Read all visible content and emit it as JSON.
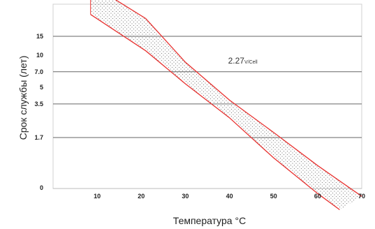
{
  "chart_data": {
    "type": "area",
    "xlabel": "Температура °C",
    "ylabel": "Срок службы (лет)",
    "xlim": [
      0,
      70
    ],
    "x_ticks": [
      10,
      20,
      30,
      40,
      50,
      60,
      70
    ],
    "y_ticks": [
      {
        "label": "15",
        "value": 15,
        "gridline": true
      },
      {
        "label": "10",
        "value": 10,
        "gridline": false
      },
      {
        "label": "7.0",
        "value": 7.0,
        "gridline": true
      },
      {
        "label": "5",
        "value": 5,
        "gridline": false
      },
      {
        "label": "3.5",
        "value": 3.5,
        "gridline": true
      },
      {
        "label": "1.7",
        "value": 1.7,
        "gridline": true
      },
      {
        "label": "0",
        "value": 0,
        "gridline": false
      }
    ],
    "y_scale": "log",
    "grid": "horizontal",
    "series": [
      {
        "role": "upper",
        "color": "#e8312f",
        "points": [
          [
            8.5,
            46
          ],
          [
            21,
            22
          ],
          [
            30,
            8.6
          ],
          [
            40,
            3.8
          ],
          [
            50,
            1.9
          ],
          [
            60,
            0.93
          ],
          [
            70,
            0.48
          ]
        ]
      },
      {
        "role": "lower",
        "color": "#e8312f",
        "points": [
          [
            8.5,
            24
          ],
          [
            21,
            11
          ],
          [
            30,
            5.4
          ],
          [
            40,
            2.6
          ],
          [
            50,
            1.1
          ],
          [
            60,
            0.51
          ],
          [
            65,
            0.36
          ]
        ]
      }
    ],
    "band_fill": "dotted",
    "annotation": {
      "text": "2.27",
      "unit": "V/Cell",
      "x": 40,
      "y": 8.9
    }
  }
}
